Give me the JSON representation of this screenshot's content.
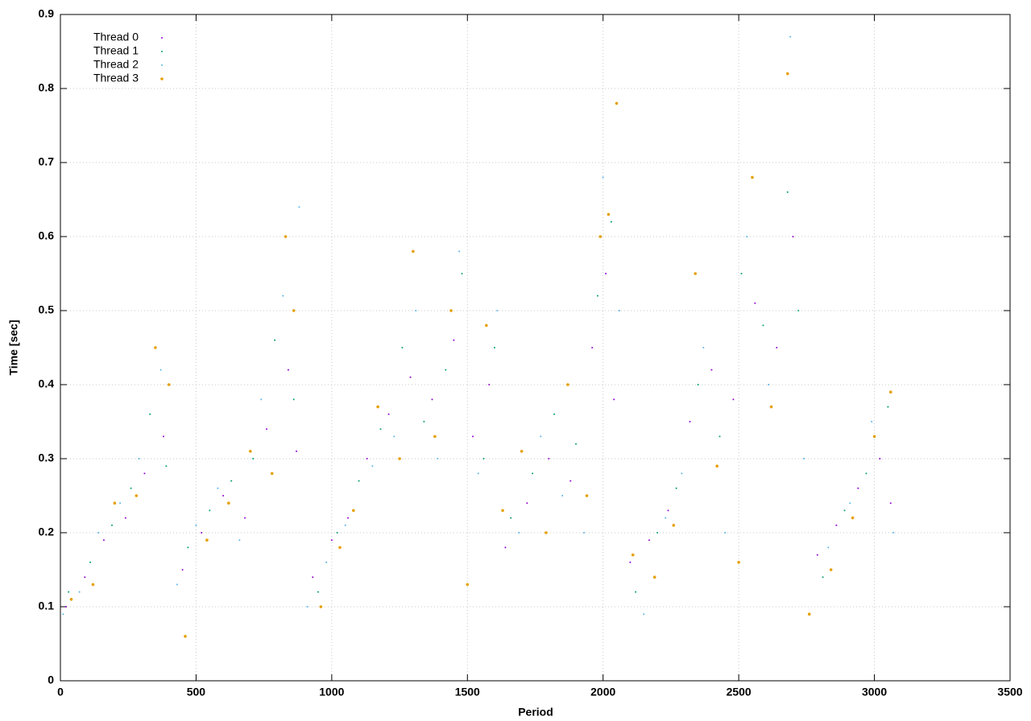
{
  "chart_data": {
    "type": "scatter",
    "x_label": "Period",
    "y_label": "Time [sec]",
    "xlim": [
      0,
      3500
    ],
    "xticks": [
      0,
      500,
      1000,
      1500,
      2000,
      2500,
      3000,
      3500
    ],
    "ylim": [
      0,
      0.9
    ],
    "yticks": [
      0,
      0.1,
      0.2,
      0.3,
      0.4,
      0.5,
      0.6,
      0.7,
      0.8,
      0.9
    ],
    "grid": true,
    "legend_position": "upper-left",
    "series": [
      {
        "name": "Thread 0",
        "color": "#9400d3",
        "x": [
          20,
          90,
          160,
          240,
          310,
          380,
          450,
          520,
          600,
          680,
          760,
          840,
          870,
          930,
          1000,
          1060,
          1130,
          1210,
          1290,
          1370,
          1450,
          1520,
          1580,
          1640,
          1720,
          1800,
          1880,
          1960,
          2010,
          2040,
          2100,
          2170,
          2240,
          2320,
          2400,
          2480,
          2560,
          2640,
          2700,
          2790,
          2860,
          2940,
          3020,
          3060
        ],
        "values": [
          0.1,
          0.14,
          0.19,
          0.22,
          0.28,
          0.33,
          0.15,
          0.2,
          0.25,
          0.22,
          0.34,
          0.42,
          0.31,
          0.14,
          0.19,
          0.22,
          0.3,
          0.36,
          0.41,
          0.38,
          0.46,
          0.33,
          0.4,
          0.18,
          0.24,
          0.3,
          0.27,
          0.45,
          0.55,
          0.38,
          0.16,
          0.19,
          0.23,
          0.35,
          0.42,
          0.38,
          0.51,
          0.45,
          0.6,
          0.17,
          0.21,
          0.26,
          0.3,
          0.24
        ]
      },
      {
        "name": "Thread 1",
        "color": "#009e73",
        "x": [
          30,
          110,
          190,
          260,
          330,
          390,
          470,
          550,
          630,
          710,
          790,
          860,
          950,
          1020,
          1100,
          1180,
          1260,
          1340,
          1420,
          1480,
          1560,
          1600,
          1660,
          1740,
          1820,
          1900,
          1980,
          2030,
          2120,
          2200,
          2270,
          2350,
          2430,
          2510,
          2590,
          2680,
          2720,
          2810,
          2890,
          2970,
          3050
        ],
        "values": [
          0.12,
          0.16,
          0.21,
          0.26,
          0.36,
          0.29,
          0.18,
          0.23,
          0.27,
          0.3,
          0.46,
          0.38,
          0.12,
          0.2,
          0.27,
          0.34,
          0.45,
          0.35,
          0.42,
          0.55,
          0.3,
          0.45,
          0.22,
          0.28,
          0.36,
          0.32,
          0.52,
          0.62,
          0.12,
          0.2,
          0.26,
          0.4,
          0.33,
          0.55,
          0.48,
          0.66,
          0.5,
          0.14,
          0.23,
          0.28,
          0.37
        ]
      },
      {
        "name": "Thread 2",
        "color": "#56b4e9",
        "x": [
          10,
          70,
          140,
          220,
          290,
          370,
          430,
          500,
          580,
          660,
          740,
          820,
          880,
          910,
          980,
          1050,
          1150,
          1230,
          1310,
          1390,
          1470,
          1540,
          1610,
          1690,
          1770,
          1850,
          1930,
          2000,
          2060,
          2150,
          2230,
          2290,
          2370,
          2450,
          2530,
          2610,
          2690,
          2740,
          2830,
          2910,
          2990,
          3070
        ],
        "values": [
          0.09,
          0.12,
          0.2,
          0.24,
          0.3,
          0.42,
          0.13,
          0.21,
          0.26,
          0.19,
          0.38,
          0.52,
          0.64,
          0.1,
          0.16,
          0.21,
          0.29,
          0.33,
          0.5,
          0.3,
          0.58,
          0.28,
          0.5,
          0.2,
          0.33,
          0.25,
          0.2,
          0.68,
          0.5,
          0.09,
          0.22,
          0.28,
          0.45,
          0.2,
          0.6,
          0.4,
          0.87,
          0.3,
          0.18,
          0.24,
          0.35,
          0.2
        ]
      },
      {
        "name": "Thread 3",
        "color": "#e69f00",
        "x": [
          40,
          120,
          200,
          280,
          350,
          400,
          460,
          540,
          620,
          700,
          780,
          830,
          860,
          960,
          1030,
          1080,
          1170,
          1250,
          1300,
          1380,
          1440,
          1500,
          1570,
          1630,
          1700,
          1790,
          1870,
          1940,
          1990,
          2020,
          2050,
          2110,
          2190,
          2260,
          2340,
          2420,
          2500,
          2550,
          2620,
          2680,
          2760,
          2840,
          2920,
          3000,
          3060
        ],
        "values": [
          0.11,
          0.13,
          0.24,
          0.25,
          0.45,
          0.4,
          0.06,
          0.19,
          0.24,
          0.31,
          0.28,
          0.6,
          0.5,
          0.1,
          0.18,
          0.23,
          0.37,
          0.3,
          0.58,
          0.33,
          0.5,
          0.13,
          0.48,
          0.23,
          0.31,
          0.2,
          0.4,
          0.25,
          0.6,
          0.63,
          0.78,
          0.17,
          0.14,
          0.21,
          0.55,
          0.29,
          0.16,
          0.68,
          0.37,
          0.82,
          0.09,
          0.15,
          0.22,
          0.33,
          0.39
        ]
      }
    ]
  }
}
